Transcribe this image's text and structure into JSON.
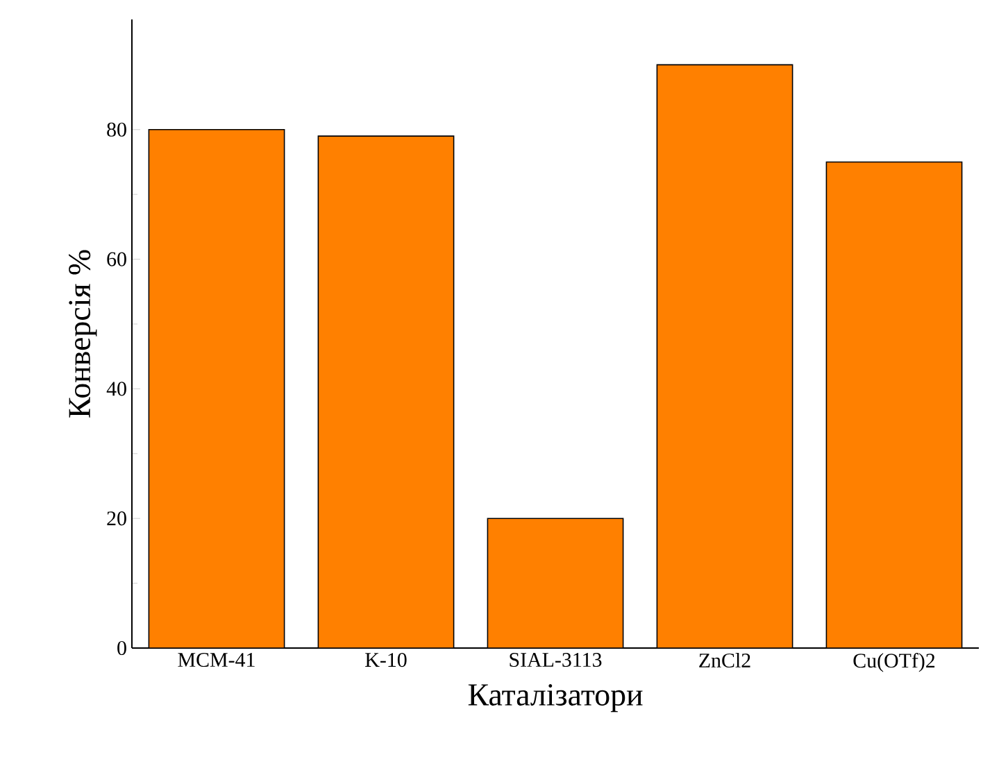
{
  "chart_data": {
    "type": "bar",
    "xlabel": "Каталізатори",
    "ylabel": "Конверсія %",
    "categories": [
      "MCM-41",
      "K-10",
      "SIAL-3113",
      "ZnCl2",
      "Cu(OTf)2"
    ],
    "values": [
      80,
      79,
      20,
      90,
      75
    ],
    "color": "#ff8000",
    "ylim": [
      0,
      97
    ],
    "yticks": [
      0,
      20,
      40,
      60,
      80
    ]
  }
}
